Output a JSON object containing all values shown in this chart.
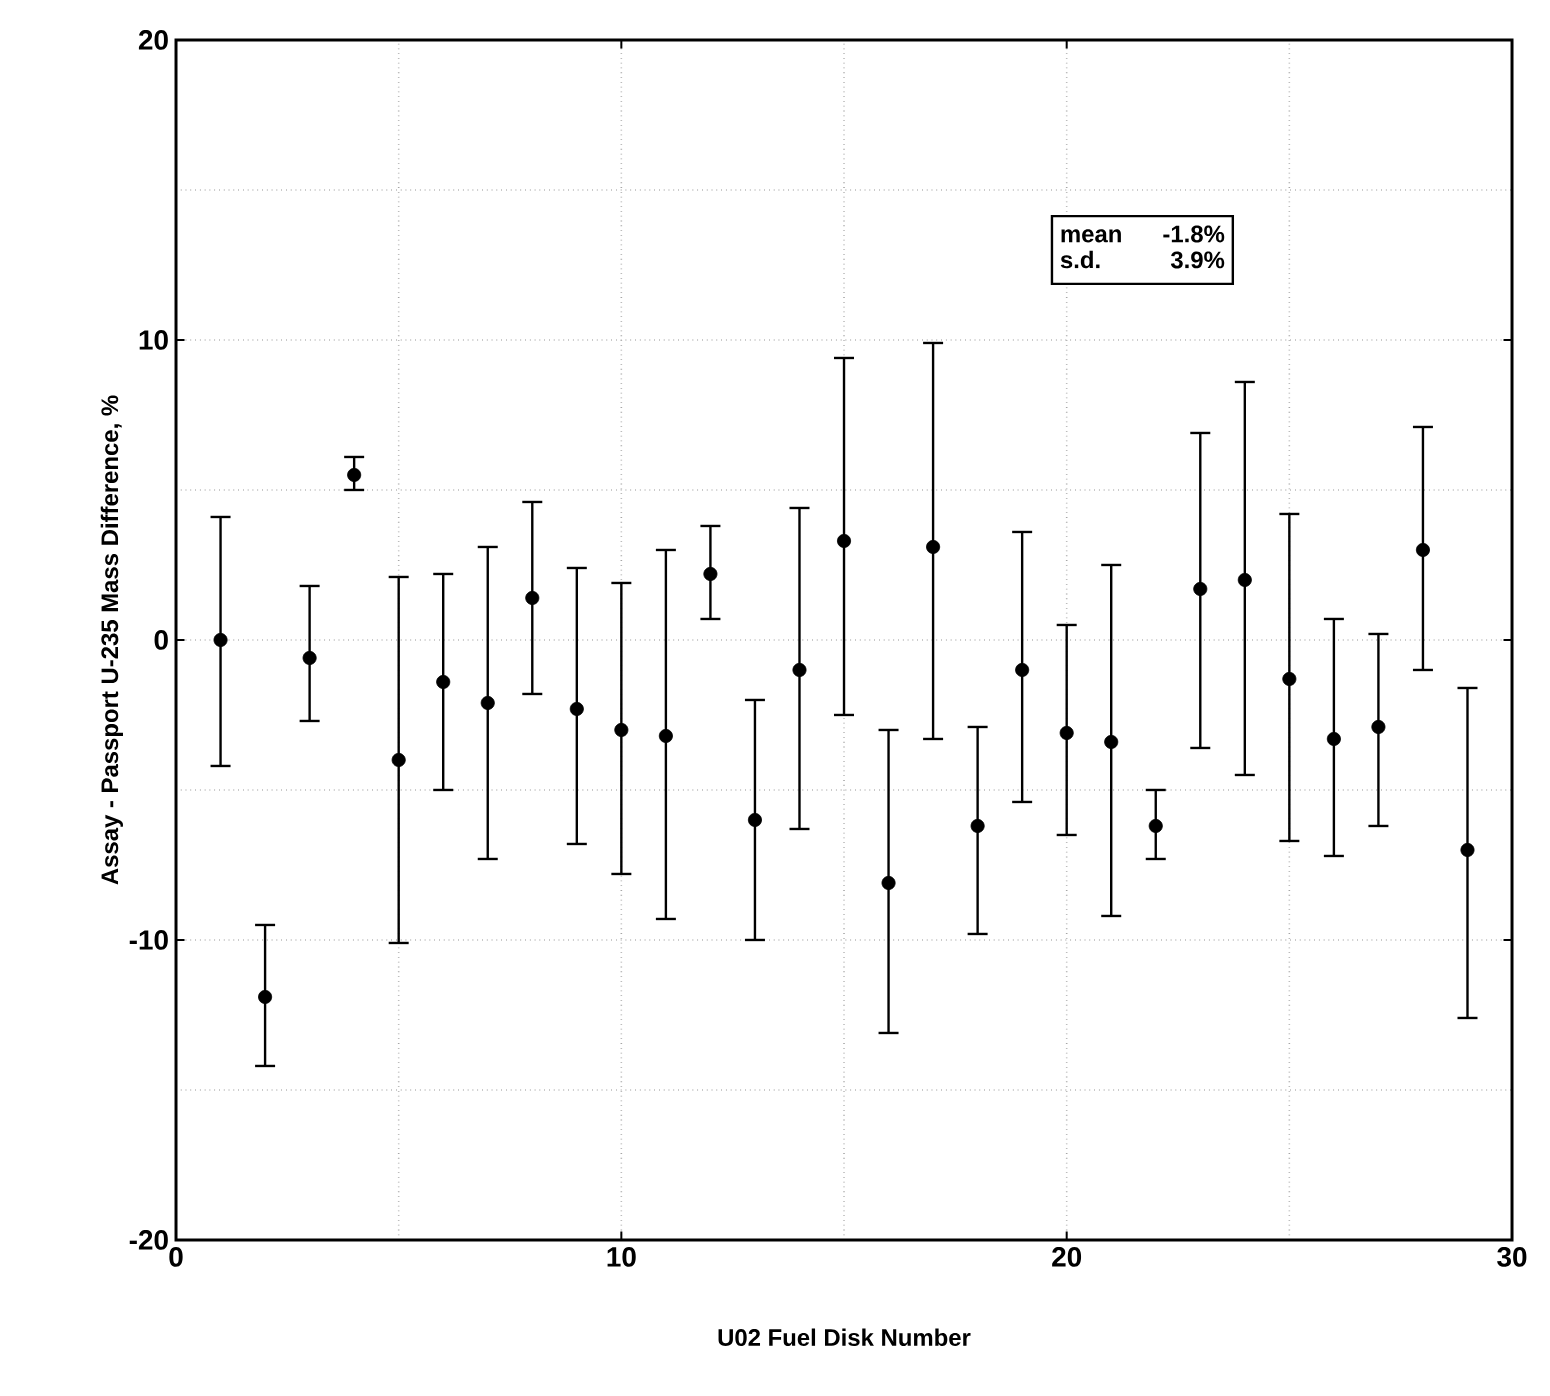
{
  "chart_data": {
    "type": "scatter",
    "xlabel": "U02 Fuel Disk Number",
    "ylabel": "Assay - Passport U-235 Mass Difference, %",
    "x": [
      1,
      2,
      3,
      4,
      5,
      6,
      7,
      8,
      9,
      10,
      11,
      12,
      13,
      14,
      15,
      16,
      17,
      18,
      19,
      20,
      21,
      22,
      23,
      24,
      25,
      26,
      27,
      28,
      29
    ],
    "values": [
      0,
      -11.9,
      -0.6,
      5.5,
      -4.0,
      -1.4,
      -2.1,
      1.4,
      -2.3,
      -3.0,
      -3.2,
      2.2,
      -6.0,
      -1.0,
      3.3,
      -8.1,
      3.1,
      -6.2,
      -1.0,
      -3.1,
      -3.4,
      -6.2,
      1.7,
      2.0,
      -1.3,
      -3.3,
      -2.9,
      3.0,
      -7.0
    ],
    "errors": [
      [
        -4.2,
        4.1
      ],
      [
        -14.2,
        -9.5
      ],
      [
        -2.7,
        1.8
      ],
      [
        5.0,
        6.1
      ],
      [
        -10.1,
        2.1
      ],
      [
        -5.0,
        2.2
      ],
      [
        -7.3,
        3.1
      ],
      [
        -1.8,
        4.6
      ],
      [
        -6.8,
        2.4
      ],
      [
        -7.8,
        1.9
      ],
      [
        -9.3,
        3.0
      ],
      [
        0.7,
        3.8
      ],
      [
        -10.0,
        -2.0
      ],
      [
        -6.3,
        4.4
      ],
      [
        -2.5,
        9.4
      ],
      [
        -13.1,
        -3.0
      ],
      [
        -3.3,
        9.9
      ],
      [
        -9.8,
        -2.9
      ],
      [
        -5.4,
        3.6
      ],
      [
        -6.5,
        0.5
      ],
      [
        -9.2,
        2.5
      ],
      [
        -7.3,
        -5.0
      ],
      [
        -3.6,
        6.9
      ],
      [
        -4.5,
        8.6
      ],
      [
        -6.7,
        4.2
      ],
      [
        -7.2,
        0.7
      ],
      [
        -6.2,
        0.2
      ],
      [
        -1.0,
        7.1
      ],
      [
        -12.6,
        -1.6
      ]
    ],
    "color": "#000000",
    "marker": "circle",
    "xlim": [
      0,
      30
    ],
    "ylim": [
      -20,
      20
    ],
    "xticks": [
      0,
      10,
      20,
      30
    ],
    "yticks": [
      -20,
      -10,
      0,
      10,
      20
    ],
    "grid": true,
    "annotations": [
      "mean",
      "-1.8%",
      "s.d.",
      "3.9%"
    ]
  }
}
